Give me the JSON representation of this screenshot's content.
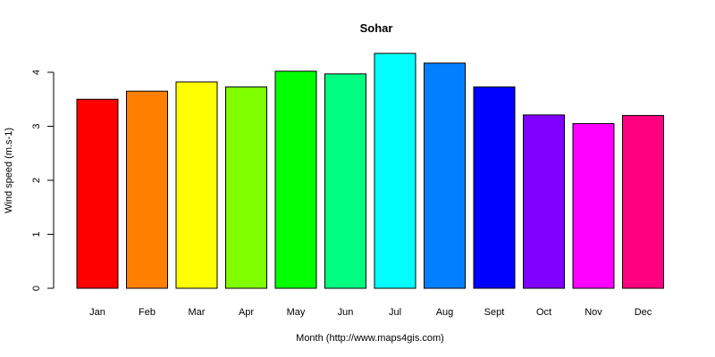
{
  "chart_data": {
    "type": "bar",
    "title": "Sohar",
    "xlabel": "Month (http://www.maps4gis.com)",
    "ylabel": "Wind speed (m.s-1)",
    "ylim": [
      0,
      4.45
    ],
    "yticks": [
      0,
      1,
      2,
      3,
      4
    ],
    "ytick_labels": [
      "0",
      "1",
      "2",
      "3",
      "4"
    ],
    "categories": [
      "Jan",
      "Feb",
      "Mar",
      "Apr",
      "May",
      "Jun",
      "Jul",
      "Aug",
      "Sept",
      "Oct",
      "Nov",
      "Dec"
    ],
    "values": [
      3.5,
      3.65,
      3.82,
      3.73,
      4.02,
      3.97,
      4.35,
      4.17,
      3.73,
      3.21,
      3.05,
      3.2
    ],
    "colors": [
      "#ff0000",
      "#ff8000",
      "#ffff00",
      "#80ff00",
      "#00ff00",
      "#00ff80",
      "#00ffff",
      "#0080ff",
      "#0000ff",
      "#8000ff",
      "#ff00ff",
      "#ff0080"
    ],
    "grid": false,
    "legend": "none"
  }
}
